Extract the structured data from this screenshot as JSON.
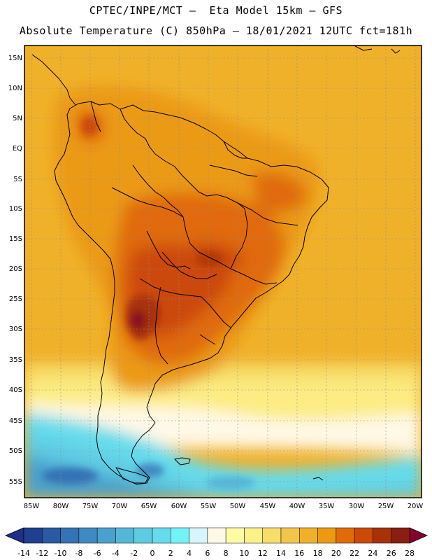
{
  "title": {
    "line1": "CPTEC/INPE/MCT —  Eta Model 15km — GFS",
    "line2": "Absolute Temperature (C) 850hPa — 18/01/2021 12UTC fct=181h"
  },
  "axes": {
    "lat_labels": [
      "15N",
      "10N",
      "5N",
      "EQ",
      "5S",
      "10S",
      "15S",
      "20S",
      "25S",
      "30S",
      "35S",
      "40S",
      "45S",
      "50S",
      "55S"
    ],
    "lon_labels": [
      "85W",
      "80W",
      "75W",
      "70W",
      "65W",
      "60W",
      "55W",
      "50W",
      "45W",
      "40W",
      "35W",
      "30W",
      "25W",
      "20W"
    ]
  },
  "colorbar": {
    "labels": [
      "-14",
      "-12",
      "-10",
      "-8",
      "-6",
      "-4",
      "-2",
      "0",
      "2",
      "4",
      "6",
      "8",
      "10",
      "12",
      "14",
      "16",
      "18",
      "20",
      "22",
      "24",
      "26",
      "28"
    ],
    "colors": [
      "#1f3f8f",
      "#2b5aa3",
      "#3673b4",
      "#3f8ac2",
      "#4aa1cd",
      "#55b7d8",
      "#5ecbe3",
      "#66dbeb",
      "#73f2f7",
      "#d6f6fb",
      "#fff8e6",
      "#fffaa6",
      "#fcf08a",
      "#f7dd6a",
      "#f2c64a",
      "#f0b12a",
      "#eb9a12",
      "#e06b08",
      "#cc4a07",
      "#a83208",
      "#8a1e10"
    ],
    "low_color": "#1d2f86",
    "high_color": "#86002f"
  }
}
